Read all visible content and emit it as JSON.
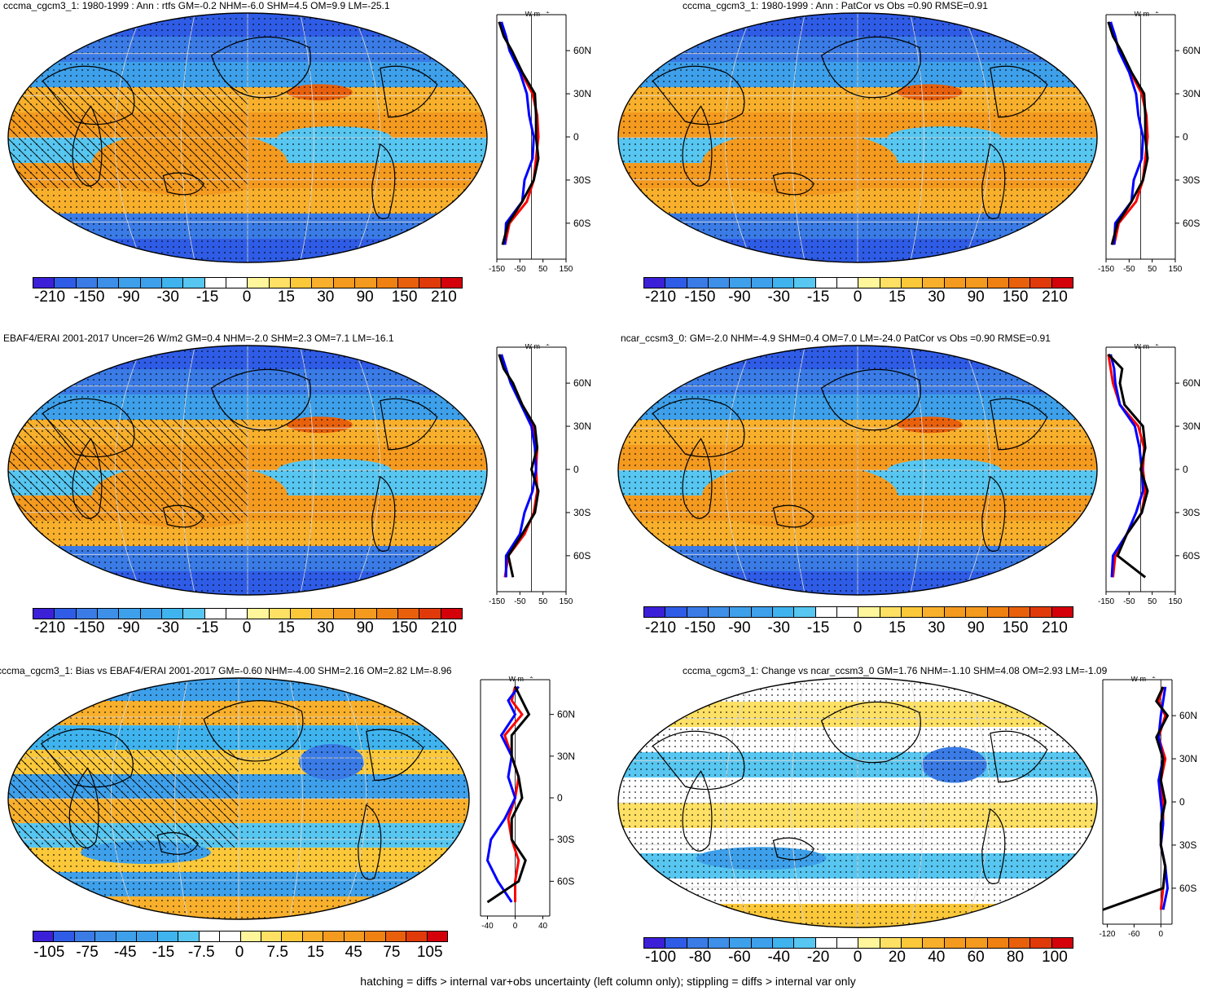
{
  "footnote": "hatching = diffs > internal var+obs uncertainty (left column only); stippling = diffs > internal var only",
  "zonal_unit": "W m",
  "zonal_unit_sup": "-2",
  "lat_ticks": [
    "60N",
    "30N",
    "0",
    "30S",
    "60S"
  ],
  "colors": {
    "cool": [
      "#3b20d8",
      "#2f5ce6",
      "#3a7be6",
      "#3d8fe8",
      "#3ea0ea",
      "#3fb3ee",
      "#57c6f0",
      "#ffffff"
    ],
    "warm": [
      "#ffffff",
      "#fff59a",
      "#fde064",
      "#fbc83a",
      "#f8b02c",
      "#f39a1f",
      "#ef8012",
      "#e8600c",
      "#e03a0a",
      "#d4000a"
    ],
    "land_line": "#000000",
    "line_model": "#000000",
    "line_obs": "#ff0000",
    "line_other": "#0000ff"
  },
  "panels": [
    {
      "id": "p1",
      "title": "cccma_cgcm3_1: 1980-1999 : Ann : rtfs GM=-0.2 NHM=-6.0 SHM=4.5 OM=9.9 LM=-25.1",
      "colorbar_labels": [
        "-210",
        "-150",
        "-90",
        "-30",
        "-15",
        "0",
        "15",
        "30",
        "90",
        "150",
        "210"
      ],
      "zonal_xticks": [
        "-150",
        "-50",
        "50",
        "150"
      ]
    },
    {
      "id": "p2",
      "title": "cccma_cgcm3_1: 1980-1999 : Ann : PatCor vs Obs =0.90 RMSE=0.91",
      "colorbar_labels": [
        "-210",
        "-150",
        "-90",
        "-30",
        "-15",
        "0",
        "15",
        "30",
        "90",
        "150",
        "210"
      ],
      "zonal_xticks": [
        "-150",
        "-50",
        "50",
        "150"
      ]
    },
    {
      "id": "p3",
      "title": "EBAF4/ERAI 2001-2017 Uncer=26 W/m2 GM=0.4 NHM=-2.0 SHM=2.3 OM=7.1 LM=-16.1",
      "colorbar_labels": [
        "-210",
        "-150",
        "-90",
        "-30",
        "-15",
        "0",
        "15",
        "30",
        "90",
        "150",
        "210"
      ],
      "zonal_xticks": [
        "-150",
        "-50",
        "50",
        "150"
      ]
    },
    {
      "id": "p4",
      "title": "ncar_ccsm3_0: GM=-2.0 NHM=-4.9 SHM=0.4 OM=7.0 LM=-24.0 PatCor vs Obs =0.90 RMSE=0.91",
      "colorbar_labels": [
        "-210",
        "-150",
        "-90",
        "-30",
        "-15",
        "0",
        "15",
        "30",
        "90",
        "150",
        "210"
      ],
      "zonal_xticks": [
        "-150",
        "-50",
        "50",
        "150"
      ]
    },
    {
      "id": "p5",
      "title": "cccma_cgcm3_1: Bias vs EBAF4/ERAI 2001-2017 GM=-0.60 NHM=-4.00 SHM=2.16 OM=2.82 LM=-8.96",
      "colorbar_labels": [
        "-105",
        "-75",
        "-45",
        "-15",
        "-7.5",
        "0",
        "7.5",
        "15",
        "45",
        "75",
        "105"
      ],
      "zonal_xticks": [
        "-40",
        "0",
        "40"
      ]
    },
    {
      "id": "p6",
      "title": "cccma_cgcm3_1: Change vs ncar_ccsm3_0 GM=1.76 NHM=-1.10 SHM=4.08 OM=2.93 LM=-1.09",
      "colorbar_labels": [
        "-100",
        "-80",
        "-60",
        "-40",
        "-20",
        "0",
        "20",
        "40",
        "60",
        "80",
        "100"
      ],
      "zonal_xticks": [
        "-120",
        "-60",
        "0"
      ]
    }
  ],
  "chart_data": [
    {
      "type": "heatmap",
      "title": "cccma_cgcm3_1: 1980-1999 : Ann : rtfs GM=-0.2 NHM=-6.0 SHM=4.5 OM=9.9 LM=-25.1",
      "colorbar": [
        "-210",
        "-150",
        "-90",
        "-30",
        "-15",
        "0",
        "15",
        "30",
        "90",
        "150",
        "210"
      ],
      "zonal_mean": {
        "type": "line",
        "xlim": [
          -150,
          150
        ],
        "lat": [
          80,
          70,
          60,
          45,
          30,
          15,
          0,
          -15,
          -30,
          -45,
          -60,
          -75
        ],
        "series": [
          {
            "values": [
              -140,
              -115,
              -90,
              -45,
              5,
              25,
              30,
              20,
              10,
              -20,
              -95,
              -115
            ]
          },
          {
            "values": [
              -130,
              -110,
              -95,
              -50,
              -20,
              -10,
              10,
              5,
              -30,
              -40,
              -110,
              -115
            ]
          },
          {
            "values": [
              -140,
              -120,
              -85,
              -40,
              15,
              20,
              20,
              30,
              10,
              -40,
              -100,
              -125
            ]
          }
        ]
      }
    },
    {
      "type": "heatmap",
      "title": "cccma_cgcm3_1: 1980-1999 : Ann : PatCor vs Obs =0.90 RMSE=0.91",
      "colorbar": [
        "-210",
        "-150",
        "-90",
        "-30",
        "-15",
        "0",
        "15",
        "30",
        "90",
        "150",
        "210"
      ],
      "zonal_mean": {
        "type": "line",
        "xlim": [
          -150,
          150
        ],
        "lat": [
          80,
          70,
          60,
          45,
          30,
          15,
          0,
          -15,
          -30,
          -45,
          -60,
          -75
        ],
        "series": [
          {
            "values": [
              -140,
              -115,
              -90,
              -45,
              5,
              25,
              30,
              20,
              10,
              -20,
              -95,
              -115
            ]
          },
          {
            "values": [
              -130,
              -110,
              -95,
              -50,
              -20,
              -10,
              10,
              5,
              -30,
              -40,
              -110,
              -115
            ]
          },
          {
            "values": [
              -140,
              -120,
              -85,
              -40,
              15,
              20,
              20,
              30,
              10,
              -40,
              -100,
              -125
            ]
          }
        ]
      }
    },
    {
      "type": "heatmap",
      "title": "EBAF4/ERAI 2001-2017 Uncer=26 W/m2 GM=0.4 NHM=-2.0 SHM=2.3 OM=7.1 LM=-16.1",
      "colorbar": [
        "-210",
        "-150",
        "-90",
        "-30",
        "-15",
        "0",
        "15",
        "30",
        "90",
        "150",
        "210"
      ],
      "zonal_mean": {
        "type": "line",
        "xlim": [
          -150,
          150
        ],
        "lat": [
          80,
          70,
          60,
          45,
          30,
          15,
          0,
          -15,
          -30,
          -45,
          -60,
          -75
        ],
        "series": [
          {
            "values": [
              -140,
              -115,
              -85,
              -40,
              10,
              25,
              20,
              25,
              10,
              -30,
              -100,
              -115
            ]
          },
          {
            "values": [
              -130,
              -110,
              -90,
              -45,
              0,
              15,
              20,
              5,
              -30,
              -50,
              -110,
              -110
            ]
          },
          {
            "values": [
              -140,
              -120,
              -80,
              -40,
              15,
              25,
              0,
              30,
              15,
              -40,
              -100,
              -80
            ]
          }
        ]
      }
    },
    {
      "type": "heatmap",
      "title": "ncar_ccsm3_0: GM=-2.0 NHM=-4.9 SHM=0.4 OM=7.0 LM=-24.0 PatCor vs Obs =0.90 RMSE=0.91",
      "colorbar": [
        "-210",
        "-150",
        "-90",
        "-30",
        "-15",
        "0",
        "15",
        "30",
        "90",
        "150",
        "210"
      ],
      "zonal_mean": {
        "type": "line",
        "xlim": [
          -150,
          150
        ],
        "lat": [
          80,
          70,
          60,
          45,
          30,
          15,
          0,
          -15,
          -30,
          -45,
          -60,
          -75
        ],
        "series": [
          {
            "values": [
              -140,
              -130,
              -120,
              -90,
              -10,
              15,
              10,
              20,
              5,
              -60,
              -110,
              -120
            ]
          },
          {
            "values": [
              -130,
              -115,
              -110,
              -90,
              -25,
              -5,
              5,
              10,
              -20,
              -60,
              -120,
              -125
            ]
          },
          {
            "values": [
              -140,
              -80,
              -90,
              -70,
              10,
              20,
              0,
              30,
              5,
              -60,
              -100,
              20
            ]
          }
        ]
      }
    },
    {
      "type": "heatmap",
      "title": "cccma_cgcm3_1: Bias vs EBAF4/ERAI 2001-2017 GM=-0.60 NHM=-4.00 SHM=2.16 OM=2.82 LM=-8.96",
      "colorbar": [
        "-105",
        "-75",
        "-45",
        "-15",
        "-7.5",
        "0",
        "7.5",
        "15",
        "45",
        "75",
        "105"
      ],
      "zonal_mean": {
        "type": "line",
        "xlim": [
          -50,
          50
        ],
        "lat": [
          80,
          70,
          60,
          45,
          30,
          15,
          0,
          -15,
          -30,
          -45,
          -60,
          -75
        ],
        "series": [
          {
            "values": [
              0,
              -5,
              10,
              -15,
              -5,
              5,
              0,
              -10,
              -5,
              5,
              0,
              0
            ]
          },
          {
            "values": [
              5,
              -10,
              0,
              -20,
              -5,
              -10,
              0,
              -15,
              -35,
              -40,
              -25,
              -5
            ]
          },
          {
            "values": [
              0,
              10,
              20,
              -5,
              -5,
              5,
              10,
              -5,
              -5,
              15,
              5,
              -40
            ]
          }
        ]
      }
    },
    {
      "type": "heatmap",
      "title": "cccma_cgcm3_1: Change vs ncar_ccsm3_0 GM=1.76 NHM=-1.10 SHM=4.08 OM=2.93 LM=-1.09",
      "colorbar": [
        "-100",
        "-80",
        "-60",
        "-40",
        "-20",
        "0",
        "20",
        "40",
        "60",
        "80",
        "100"
      ],
      "zonal_mean": {
        "type": "line",
        "xlim": [
          -130,
          25
        ],
        "lat": [
          80,
          70,
          60,
          45,
          30,
          15,
          0,
          -15,
          -30,
          -45,
          -60,
          -75
        ],
        "series": [
          {
            "values": [
              5,
              -5,
              10,
              -5,
              10,
              0,
              5,
              5,
              0,
              10,
              5,
              0
            ]
          },
          {
            "values": [
              10,
              5,
              0,
              -5,
              5,
              -5,
              0,
              5,
              0,
              10,
              15,
              5
            ]
          },
          {
            "values": [
              5,
              -10,
              15,
              -10,
              5,
              0,
              10,
              0,
              0,
              10,
              5,
              -130
            ]
          }
        ]
      }
    }
  ]
}
